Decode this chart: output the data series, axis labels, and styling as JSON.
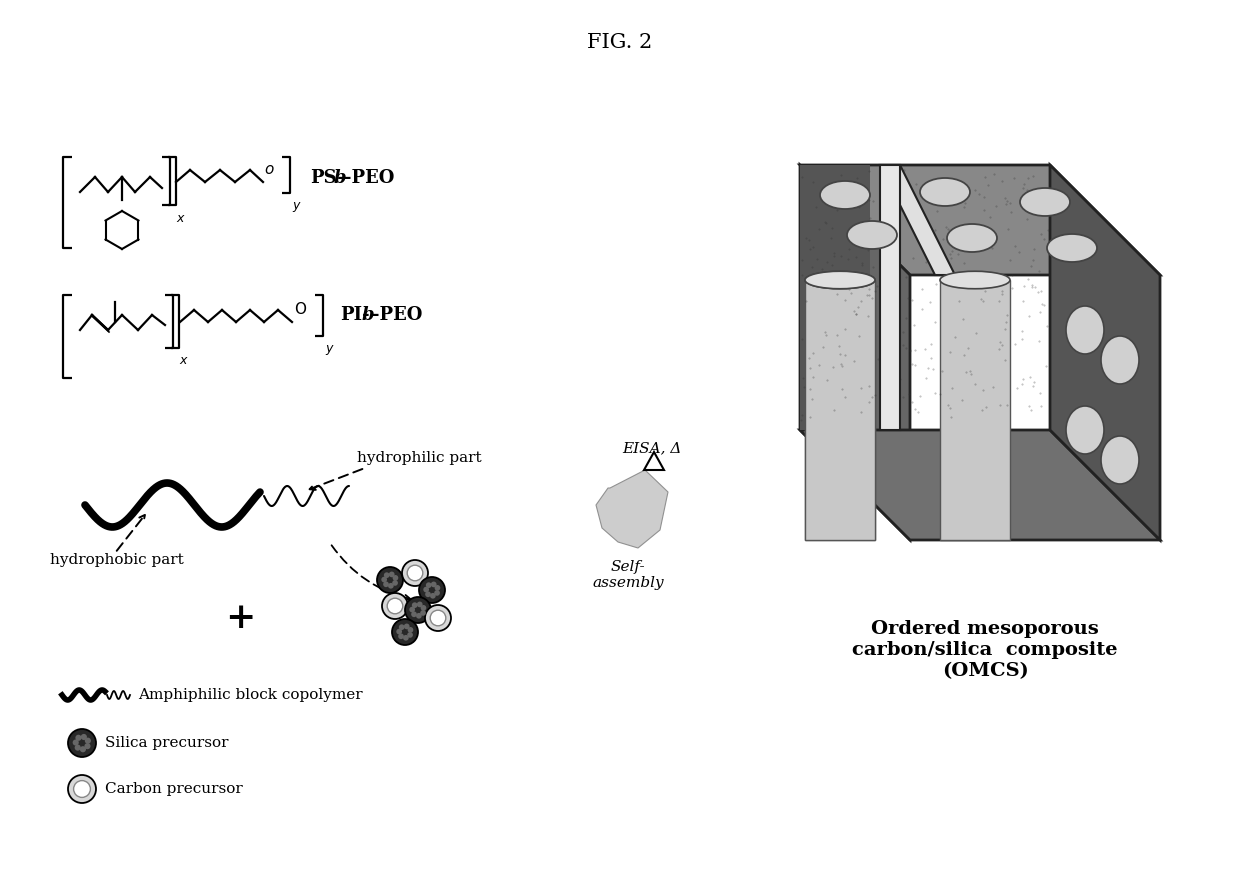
{
  "title": "FIG. 2",
  "bg_color": "#ffffff",
  "text_color": "#000000",
  "label_ps_peo": "PS-b-PEO",
  "label_pi_peo": "PI-b-PEO",
  "label_hydrophilic": "hydrophilic part",
  "label_hydrophobic": "hydrophobic part",
  "label_amphiphilic": "Amphiphilic block copolymer",
  "label_silica": "Silica precursor",
  "label_carbon": "Carbon precursor",
  "label_eisa": "EISA, Δ",
  "label_selfassembly": "Self-\nassembly",
  "label_omcs": "Ordered mesoporous\ncarbon/silica  composite\n(OMCS)",
  "block_dark": "#404040",
  "block_mid": "#707070",
  "block_light": "#b0b0b0",
  "block_pore": "#d0d0d0",
  "block_edge": "#222222"
}
